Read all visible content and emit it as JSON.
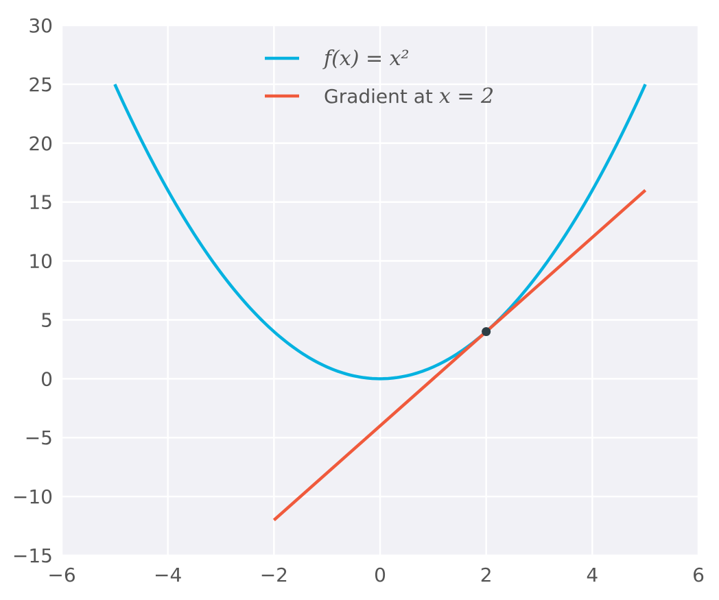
{
  "chart_data": {
    "type": "line",
    "title": "",
    "xlabel": "",
    "ylabel": "",
    "xlim": [
      -6,
      6
    ],
    "ylim": [
      -15,
      30
    ],
    "xticks": [
      -6,
      -4,
      -2,
      0,
      2,
      4,
      6
    ],
    "yticks": [
      -15,
      -10,
      -5,
      0,
      5,
      10,
      15,
      20,
      25,
      30
    ],
    "xtick_labels": [
      "−6",
      "−4",
      "−2",
      "0",
      "2",
      "4",
      "6"
    ],
    "ytick_labels": [
      "−15",
      "−10",
      "−5",
      "0",
      "5",
      "10",
      "15",
      "20",
      "25",
      "30"
    ],
    "grid": true,
    "background": "#f1f1f6",
    "gridColor": "#ffffff",
    "legend": {
      "placement": "top-center",
      "entries": [
        {
          "series": "curve",
          "math": "f(x) = x²",
          "text": "",
          "color": "#06b2e0"
        },
        {
          "series": "tangent",
          "text": "Gradient at ",
          "math": "x = 2",
          "color": "#f05a3c"
        }
      ]
    },
    "series": [
      {
        "id": "curve",
        "name": "f(x) = x²",
        "color": "#06b2e0",
        "x": [
          -5,
          -4.5,
          -4,
          -3.5,
          -3,
          -2.5,
          -2,
          -1.5,
          -1,
          -0.5,
          0,
          0.5,
          1,
          1.5,
          2,
          2.5,
          3,
          3.5,
          4,
          4.5,
          5
        ],
        "y": [
          25,
          20.25,
          16,
          12.25,
          9,
          6.25,
          4,
          2.25,
          1,
          0.25,
          0,
          0.25,
          1,
          2.25,
          4,
          6.25,
          9,
          12.25,
          16,
          20.25,
          25
        ]
      },
      {
        "id": "tangent",
        "name": "Gradient at x = 2",
        "color": "#f05a3c",
        "x": [
          -2,
          5
        ],
        "y": [
          -12,
          16
        ]
      }
    ],
    "points": [
      {
        "x": 2,
        "y": 4,
        "color": "#2d3e45"
      }
    ]
  }
}
